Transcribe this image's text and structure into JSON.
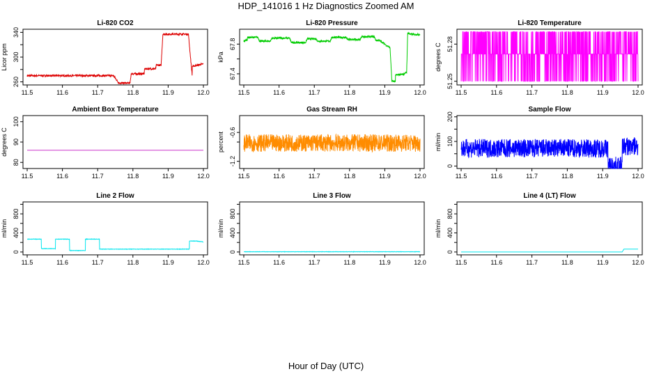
{
  "title": "HDP_141016  1 Hz Diagnostics Zoomed AM",
  "xlabel": "Hour of Day (UTC)",
  "colors": {
    "red": "#dd0000",
    "green": "#00cc00",
    "magenta": "#ff00ff",
    "purple": "#cc33cc",
    "orange": "#ff8c00",
    "blue": "#0000ff",
    "cyan": "#00e5ee"
  },
  "chart_data": [
    {
      "type": "line",
      "title": "Li-820 CO2",
      "ylabel": "Licor ppm",
      "xlim": [
        11.5,
        12.0
      ],
      "ylim": [
        255,
        345
      ],
      "x_ticks": [
        11.5,
        11.6,
        11.7,
        11.8,
        11.9,
        12.0
      ],
      "y_ticks": [
        260,
        280,
        300,
        320,
        340
      ],
      "y_tick_labels": [
        "260",
        "",
        "300",
        "",
        "340"
      ],
      "color": "red",
      "noise": 1.5,
      "series": [
        {
          "x": [
            11.5,
            11.67,
            11.67,
            11.745,
            11.76,
            11.76,
            11.792,
            11.795,
            11.795,
            11.832,
            11.833,
            11.833,
            11.865,
            11.866,
            11.866,
            11.88,
            11.885,
            11.885,
            11.958,
            11.958,
            11.968,
            11.968,
            12.0
          ],
          "y": [
            270,
            270,
            270,
            270,
            258,
            258,
            258,
            273,
            273,
            273,
            281,
            281,
            281,
            287,
            287,
            287,
            337,
            337,
            337,
            333,
            271,
            285,
            289
          ]
        }
      ]
    },
    {
      "type": "line",
      "title": "Li-820 Pressure",
      "ylabel": "kPa",
      "xlim": [
        11.5,
        12.0
      ],
      "ylim": [
        67.25,
        68.0
      ],
      "x_ticks": [
        11.5,
        11.6,
        11.7,
        11.8,
        11.9,
        12.0
      ],
      "y_ticks": [
        67.4,
        67.6,
        67.8
      ],
      "y_tick_labels": [
        "67.4",
        "",
        "67.8"
      ],
      "color": "green",
      "noise": 0.012,
      "series": [
        {
          "x": [
            11.5,
            11.51,
            11.51,
            11.54,
            11.545,
            11.575,
            11.58,
            11.63,
            11.635,
            11.675,
            11.68,
            11.705,
            11.71,
            11.745,
            11.75,
            11.79,
            11.795,
            11.83,
            11.835,
            11.87,
            11.875,
            11.885,
            11.9,
            11.915,
            11.92,
            11.93,
            11.93,
            11.955,
            11.962,
            11.965,
            11.975,
            12.0
          ],
          "y": [
            67.84,
            67.86,
            67.89,
            67.89,
            67.84,
            67.84,
            67.88,
            67.88,
            67.82,
            67.82,
            67.87,
            67.87,
            67.84,
            67.84,
            67.89,
            67.89,
            67.86,
            67.86,
            67.9,
            67.9,
            67.85,
            67.85,
            67.8,
            67.75,
            67.3,
            67.3,
            67.38,
            67.4,
            67.42,
            67.95,
            67.93,
            67.93
          ]
        }
      ]
    },
    {
      "type": "line",
      "title": "Li-820 Temperature",
      "ylabel": "degrees C",
      "xlim": [
        11.5,
        12.0
      ],
      "ylim": [
        51.247,
        51.292
      ],
      "x_ticks": [
        11.5,
        11.6,
        11.7,
        11.8,
        11.9,
        12.0
      ],
      "y_ticks": [
        51.25,
        51.28
      ],
      "y_tick_labels": [
        "51.25",
        "51.28"
      ],
      "color": "magenta",
      "levels": [
        51.25,
        51.272,
        51.29
      ]
    },
    {
      "type": "line",
      "title": "Ambient Box Temperature",
      "ylabel": "degrees C",
      "xlim": [
        11.5,
        12.0
      ],
      "ylim": [
        77,
        103
      ],
      "x_ticks": [
        11.5,
        11.6,
        11.7,
        11.8,
        11.9,
        12.0
      ],
      "y_ticks": [
        80,
        90,
        100
      ],
      "y_tick_labels": [
        "80",
        "90",
        "100"
      ],
      "color": "purple",
      "noise": 0,
      "series": [
        {
          "x": [
            11.5,
            12.0
          ],
          "y": [
            86,
            86
          ]
        }
      ]
    },
    {
      "type": "line",
      "title": "Gas Stream RH",
      "ylabel": "percent",
      "xlim": [
        11.5,
        12.0
      ],
      "ylim": [
        -1.35,
        -0.25
      ],
      "x_ticks": [
        11.5,
        11.6,
        11.7,
        11.8,
        11.9,
        12.0
      ],
      "y_ticks": [
        -1.2,
        -0.8,
        -0.6
      ],
      "y_tick_labels": [
        "-1.2",
        "",
        "-0.6"
      ],
      "color": "orange",
      "noise": 0.18,
      "series": [
        {
          "x": [
            11.5,
            12.0
          ],
          "y": [
            -0.82,
            -0.82
          ]
        }
      ]
    },
    {
      "type": "line",
      "title": "Sample Flow",
      "ylabel": "ml/min",
      "xlim": [
        11.5,
        12.0
      ],
      "ylim": [
        -10,
        205
      ],
      "x_ticks": [
        11.5,
        11.6,
        11.7,
        11.8,
        11.9,
        12.0
      ],
      "y_ticks": [
        0,
        50,
        100,
        150,
        200
      ],
      "y_tick_labels": [
        "0",
        "",
        "100",
        "",
        "200"
      ],
      "color": "blue",
      "noise": 38,
      "series": [
        {
          "x": [
            11.5,
            11.915,
            11.915,
            11.955,
            11.955,
            12.0
          ],
          "y": [
            72,
            72,
            0,
            0,
            80,
            80
          ]
        }
      ]
    },
    {
      "type": "line",
      "title": "Line 2 Flow",
      "ylabel": "ml/min",
      "xlim": [
        11.5,
        12.0
      ],
      "ylim": [
        -60,
        1050
      ],
      "x_ticks": [
        11.5,
        11.6,
        11.7,
        11.8,
        11.9,
        12.0
      ],
      "y_ticks": [
        0,
        200,
        400,
        600,
        800,
        1000
      ],
      "y_tick_labels": [
        "0",
        "",
        "400",
        "",
        "800",
        ""
      ],
      "color": "cyan",
      "noise": 4,
      "series": [
        {
          "x": [
            11.5,
            11.54,
            11.54,
            11.58,
            11.58,
            11.62,
            11.62,
            11.665,
            11.665,
            11.705,
            11.705,
            11.96,
            11.96,
            11.98,
            12.0
          ],
          "y": [
            270,
            270,
            70,
            70,
            270,
            270,
            30,
            30,
            270,
            270,
            60,
            60,
            230,
            230,
            210
          ]
        }
      ]
    },
    {
      "type": "line",
      "title": "Line 3 Flow",
      "ylabel": "ml/min",
      "xlim": [
        11.5,
        12.0
      ],
      "ylim": [
        -60,
        1050
      ],
      "x_ticks": [
        11.5,
        11.6,
        11.7,
        11.8,
        11.9,
        12.0
      ],
      "y_ticks": [
        0,
        200,
        400,
        600,
        800,
        1000
      ],
      "y_tick_labels": [
        "0",
        "",
        "400",
        "",
        "800",
        ""
      ],
      "color": "cyan",
      "noise": 3,
      "series": [
        {
          "x": [
            11.5,
            12.0
          ],
          "y": [
            5,
            5
          ]
        }
      ]
    },
    {
      "type": "line",
      "title": "Line 4 (LT) Flow",
      "ylabel": "ml/min",
      "xlim": [
        11.5,
        12.0
      ],
      "ylim": [
        -60,
        1050
      ],
      "x_ticks": [
        11.5,
        11.6,
        11.7,
        11.8,
        11.9,
        12.0
      ],
      "y_ticks": [
        0,
        200,
        400,
        600,
        800,
        1000
      ],
      "y_tick_labels": [
        "0",
        "",
        "400",
        "",
        "800",
        ""
      ],
      "color": "cyan",
      "noise": 0,
      "series": [
        {
          "x": [
            11.5,
            11.955,
            11.96,
            11.96,
            12.0
          ],
          "y": [
            0,
            0,
            60,
            60,
            60
          ]
        }
      ]
    }
  ]
}
